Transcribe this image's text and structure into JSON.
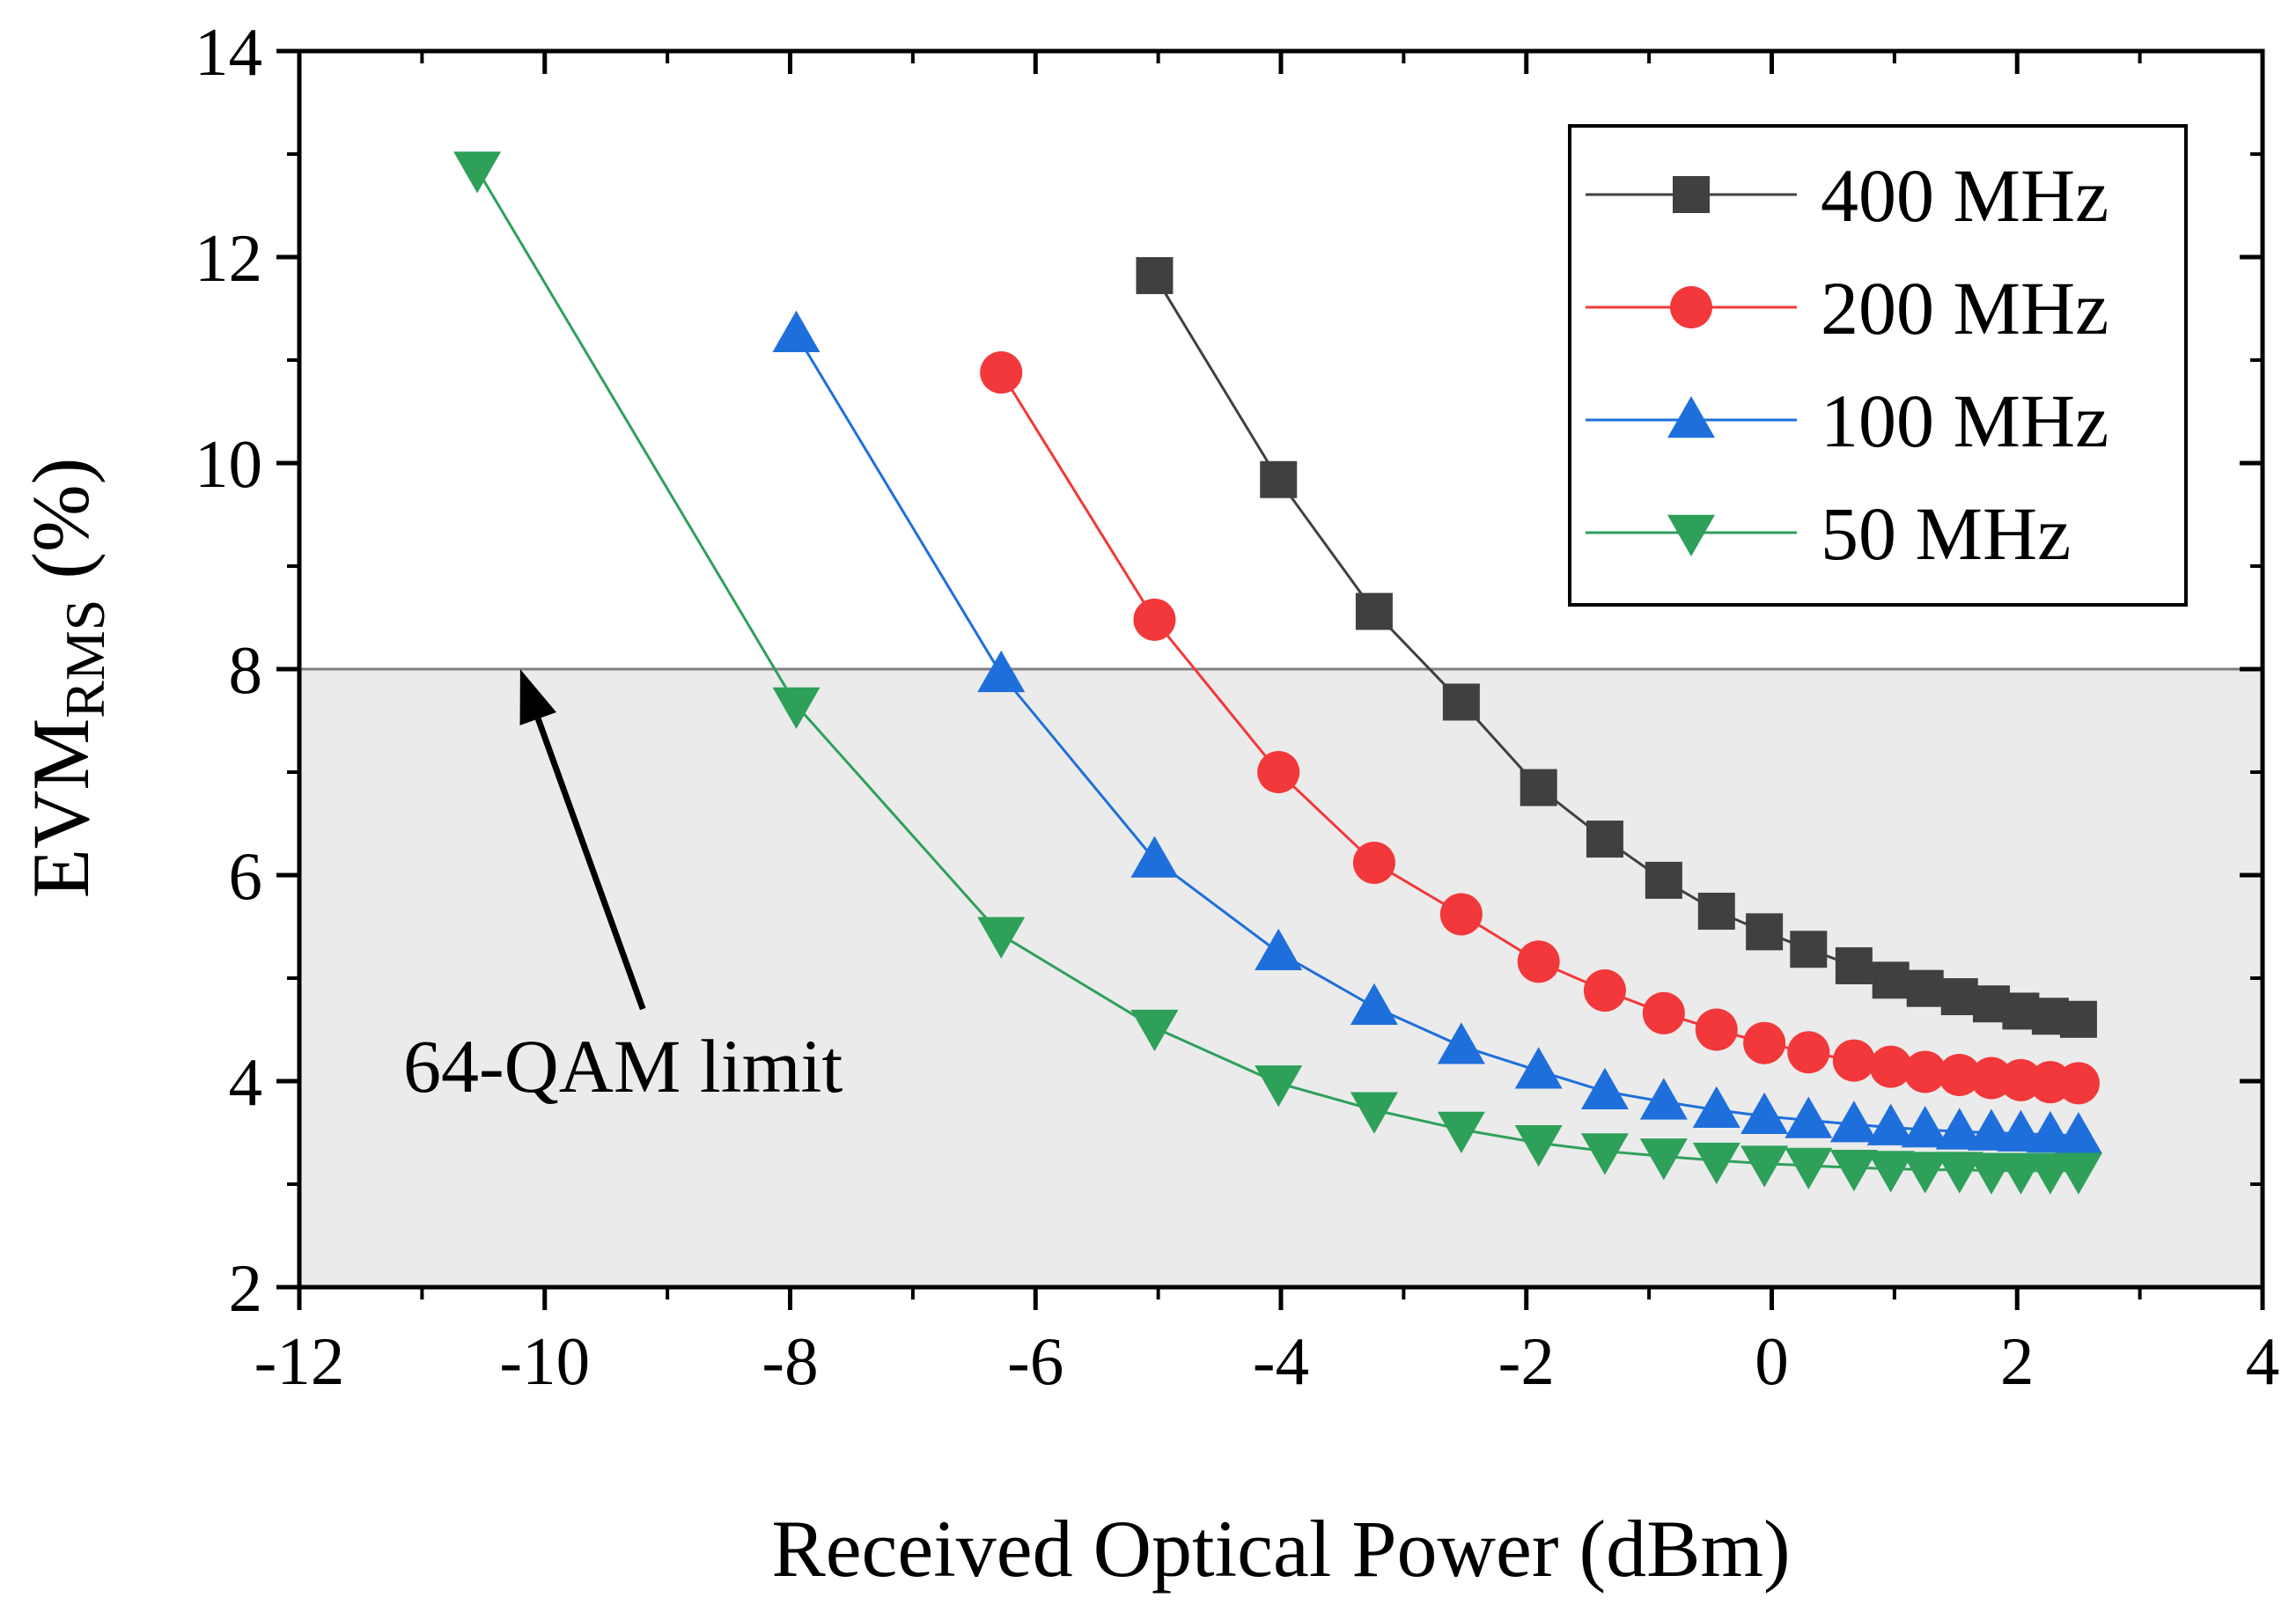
{
  "chart_data": {
    "type": "line",
    "title": "",
    "xlabel": "Received Optical Power (dBm)",
    "ylabel": {
      "main": "EVM",
      "subscript": "RMS",
      "suffix": " (%)"
    },
    "xlim": [
      -12,
      4
    ],
    "ylim": [
      2,
      14
    ],
    "xticks": [
      "-12",
      "-10",
      "-8",
      "-6",
      "-4",
      "-2",
      "0",
      "2",
      "4"
    ],
    "xtick_values": [
      -12,
      -10,
      -8,
      -6,
      -4,
      -2,
      0,
      2,
      4
    ],
    "yticks": [
      "2",
      "4",
      "6",
      "8",
      "10",
      "12",
      "14"
    ],
    "ytick_values": [
      2,
      4,
      6,
      8,
      10,
      12,
      14
    ],
    "grid": false,
    "legend_position": "top-right",
    "threshold": {
      "value": 8,
      "shaded": "below",
      "shade_color": "#ebebeb",
      "line_color": "#808080"
    },
    "annotation": {
      "text": "64-QAM limit",
      "arrow_from": [
        -9.2,
        4.7
      ],
      "arrow_to": [
        -10.2,
        8.0
      ]
    },
    "series": [
      {
        "name": "400 MHz",
        "color": "#404040",
        "marker": "square",
        "x": [
          -5.03,
          -4.02,
          -3.24,
          -2.53,
          -1.9,
          -1.36,
          -0.88,
          -0.45,
          -0.06,
          0.3,
          0.67,
          0.97,
          1.25,
          1.53,
          1.79,
          2.03,
          2.27,
          2.5
        ],
        "y": [
          11.82,
          9.84,
          8.56,
          7.68,
          6.85,
          6.35,
          5.95,
          5.65,
          5.45,
          5.28,
          5.12,
          4.98,
          4.9,
          4.82,
          4.75,
          4.68,
          4.63,
          4.6
        ]
      },
      {
        "name": "200 MHz",
        "color": "#f2383a",
        "marker": "circle",
        "x": [
          -6.28,
          -5.03,
          -4.02,
          -3.24,
          -2.53,
          -1.9,
          -1.36,
          -0.88,
          -0.45,
          -0.06,
          0.3,
          0.67,
          0.97,
          1.25,
          1.53,
          1.79,
          2.03,
          2.27,
          2.5
        ],
        "y": [
          10.88,
          8.48,
          7.0,
          6.12,
          5.62,
          5.16,
          4.88,
          4.66,
          4.5,
          4.37,
          4.28,
          4.2,
          4.14,
          4.09,
          4.06,
          4.03,
          4.01,
          3.99,
          3.98
        ]
      },
      {
        "name": "100 MHz",
        "color": "#1e6fdb",
        "marker": "triangle-up",
        "x": [
          -7.95,
          -6.28,
          -5.03,
          -4.02,
          -3.24,
          -2.53,
          -1.9,
          -1.36,
          -0.88,
          -0.45,
          -0.06,
          0.3,
          0.67,
          0.97,
          1.25,
          1.53,
          1.79,
          2.03,
          2.27,
          2.5
        ],
        "y": [
          11.25,
          7.95,
          6.15,
          5.25,
          4.72,
          4.34,
          4.1,
          3.9,
          3.8,
          3.72,
          3.66,
          3.62,
          3.58,
          3.55,
          3.53,
          3.51,
          3.5,
          3.49,
          3.48,
          3.47
        ]
      },
      {
        "name": "50 MHz",
        "color": "#2ea05a",
        "marker": "triangle-down",
        "x": [
          -10.55,
          -7.95,
          -6.28,
          -5.03,
          -4.02,
          -3.24,
          -2.53,
          -1.9,
          -1.36,
          -0.88,
          -0.45,
          -0.06,
          0.3,
          0.67,
          0.97,
          1.25,
          1.53,
          1.79,
          2.03,
          2.27,
          2.5
        ],
        "y": [
          12.85,
          7.65,
          5.42,
          4.52,
          3.98,
          3.72,
          3.53,
          3.4,
          3.32,
          3.27,
          3.23,
          3.2,
          3.18,
          3.16,
          3.15,
          3.14,
          3.14,
          3.13,
          3.13,
          3.13,
          3.13
        ]
      }
    ]
  }
}
